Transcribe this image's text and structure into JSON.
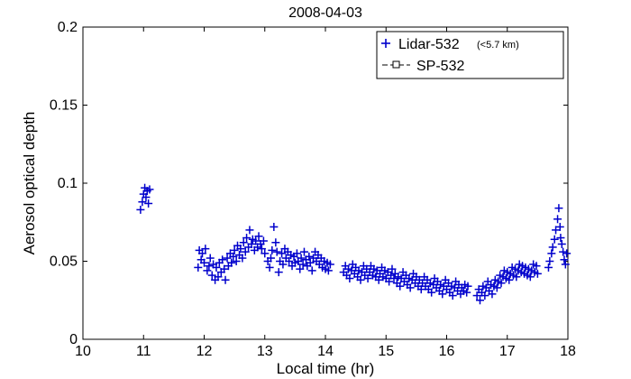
{
  "chart_data": {
    "type": "scatter",
    "title": "2008-04-03",
    "xlabel": "Local time (hr)",
    "ylabel": "Aerosol optical depth",
    "xlim": [
      10,
      18
    ],
    "ylim": [
      0,
      0.2
    ],
    "xticks": [
      "10",
      "11",
      "12",
      "13",
      "14",
      "15",
      "16",
      "17",
      "18"
    ],
    "yticks": [
      "0",
      "0.05",
      "0.1",
      "0.15",
      "0.2"
    ],
    "legend_position": "top-right",
    "series": [
      {
        "name": "Lidar-532",
        "name_note": "(<5.7 km)",
        "marker": "plus",
        "color": "#0000cc",
        "points": [
          [
            10.95,
            0.083
          ],
          [
            10.98,
            0.088
          ],
          [
            11.0,
            0.093
          ],
          [
            11.02,
            0.097
          ],
          [
            11.04,
            0.091
          ],
          [
            11.06,
            0.095
          ],
          [
            11.08,
            0.087
          ],
          [
            11.1,
            0.096
          ],
          [
            11.9,
            0.046
          ],
          [
            11.92,
            0.057
          ],
          [
            11.95,
            0.051
          ],
          [
            11.97,
            0.055
          ],
          [
            12.0,
            0.049
          ],
          [
            12.02,
            0.058
          ],
          [
            12.05,
            0.044
          ],
          [
            12.08,
            0.047
          ],
          [
            12.1,
            0.052
          ],
          [
            12.13,
            0.041
          ],
          [
            12.15,
            0.048
          ],
          [
            12.18,
            0.038
          ],
          [
            12.2,
            0.046
          ],
          [
            12.23,
            0.04
          ],
          [
            12.25,
            0.049
          ],
          [
            12.28,
            0.043
          ],
          [
            12.3,
            0.051
          ],
          [
            12.33,
            0.045
          ],
          [
            12.35,
            0.038
          ],
          [
            12.38,
            0.052
          ],
          [
            12.4,
            0.047
          ],
          [
            12.43,
            0.055
          ],
          [
            12.45,
            0.049
          ],
          [
            12.48,
            0.053
          ],
          [
            12.5,
            0.057
          ],
          [
            12.53,
            0.05
          ],
          [
            12.55,
            0.06
          ],
          [
            12.58,
            0.054
          ],
          [
            12.6,
            0.058
          ],
          [
            12.63,
            0.052
          ],
          [
            12.65,
            0.062
          ],
          [
            12.68,
            0.056
          ],
          [
            12.7,
            0.065
          ],
          [
            12.73,
            0.059
          ],
          [
            12.75,
            0.07
          ],
          [
            12.78,
            0.061
          ],
          [
            12.8,
            0.064
          ],
          [
            12.83,
            0.057
          ],
          [
            12.85,
            0.063
          ],
          [
            12.88,
            0.059
          ],
          [
            12.9,
            0.066
          ],
          [
            12.93,
            0.061
          ],
          [
            12.95,
            0.058
          ],
          [
            12.98,
            0.063
          ],
          [
            13.0,
            0.055
          ],
          [
            13.05,
            0.05
          ],
          [
            13.08,
            0.046
          ],
          [
            13.1,
            0.052
          ],
          [
            13.12,
            0.057
          ],
          [
            13.15,
            0.072
          ],
          [
            13.18,
            0.062
          ],
          [
            13.2,
            0.056
          ],
          [
            13.23,
            0.043
          ],
          [
            13.25,
            0.05
          ],
          [
            13.28,
            0.055
          ],
          [
            13.3,
            0.048
          ],
          [
            13.33,
            0.058
          ],
          [
            13.35,
            0.052
          ],
          [
            13.38,
            0.056
          ],
          [
            13.4,
            0.05
          ],
          [
            13.43,
            0.054
          ],
          [
            13.45,
            0.047
          ],
          [
            13.48,
            0.053
          ],
          [
            13.5,
            0.049
          ],
          [
            13.53,
            0.055
          ],
          [
            13.55,
            0.05
          ],
          [
            13.58,
            0.045
          ],
          [
            13.6,
            0.052
          ],
          [
            13.63,
            0.048
          ],
          [
            13.65,
            0.056
          ],
          [
            13.68,
            0.051
          ],
          [
            13.7,
            0.047
          ],
          [
            13.73,
            0.053
          ],
          [
            13.75,
            0.049
          ],
          [
            13.78,
            0.044
          ],
          [
            13.8,
            0.052
          ],
          [
            13.83,
            0.056
          ],
          [
            13.85,
            0.05
          ],
          [
            13.88,
            0.054
          ],
          [
            13.9,
            0.048
          ],
          [
            13.93,
            0.052
          ],
          [
            13.95,
            0.046
          ],
          [
            13.98,
            0.05
          ],
          [
            14.0,
            0.045
          ],
          [
            14.03,
            0.049
          ],
          [
            14.05,
            0.044
          ],
          [
            14.08,
            0.048
          ],
          [
            14.3,
            0.043
          ],
          [
            14.33,
            0.047
          ],
          [
            14.35,
            0.041
          ],
          [
            14.38,
            0.045
          ],
          [
            14.4,
            0.039
          ],
          [
            14.43,
            0.044
          ],
          [
            14.45,
            0.048
          ],
          [
            14.48,
            0.042
          ],
          [
            14.5,
            0.046
          ],
          [
            14.53,
            0.04
          ],
          [
            14.55,
            0.044
          ],
          [
            14.58,
            0.038
          ],
          [
            14.6,
            0.043
          ],
          [
            14.63,
            0.047
          ],
          [
            14.65,
            0.041
          ],
          [
            14.68,
            0.045
          ],
          [
            14.7,
            0.039
          ],
          [
            14.73,
            0.043
          ],
          [
            14.75,
            0.047
          ],
          [
            14.78,
            0.041
          ],
          [
            14.8,
            0.045
          ],
          [
            14.83,
            0.04
          ],
          [
            14.85,
            0.044
          ],
          [
            14.88,
            0.038
          ],
          [
            14.9,
            0.042
          ],
          [
            14.93,
            0.046
          ],
          [
            14.95,
            0.04
          ],
          [
            14.98,
            0.044
          ],
          [
            15.0,
            0.039
          ],
          [
            15.03,
            0.043
          ],
          [
            15.05,
            0.037
          ],
          [
            15.08,
            0.041
          ],
          [
            15.1,
            0.045
          ],
          [
            15.13,
            0.039
          ],
          [
            15.15,
            0.042
          ],
          [
            15.18,
            0.036
          ],
          [
            15.2,
            0.04
          ],
          [
            15.23,
            0.034
          ],
          [
            15.25,
            0.039
          ],
          [
            15.28,
            0.043
          ],
          [
            15.3,
            0.037
          ],
          [
            15.33,
            0.041
          ],
          [
            15.35,
            0.035
          ],
          [
            15.38,
            0.039
          ],
          [
            15.4,
            0.033
          ],
          [
            15.43,
            0.038
          ],
          [
            15.45,
            0.042
          ],
          [
            15.48,
            0.036
          ],
          [
            15.5,
            0.04
          ],
          [
            15.53,
            0.034
          ],
          [
            15.55,
            0.038
          ],
          [
            15.58,
            0.032
          ],
          [
            15.6,
            0.036
          ],
          [
            15.63,
            0.04
          ],
          [
            15.65,
            0.034
          ],
          [
            15.68,
            0.038
          ],
          [
            15.7,
            0.032
          ],
          [
            15.73,
            0.036
          ],
          [
            15.75,
            0.03
          ],
          [
            15.78,
            0.035
          ],
          [
            15.8,
            0.039
          ],
          [
            15.83,
            0.033
          ],
          [
            15.85,
            0.037
          ],
          [
            15.88,
            0.031
          ],
          [
            15.9,
            0.035
          ],
          [
            15.93,
            0.029
          ],
          [
            15.95,
            0.034
          ],
          [
            15.98,
            0.038
          ],
          [
            16.0,
            0.032
          ],
          [
            16.03,
            0.036
          ],
          [
            16.05,
            0.03
          ],
          [
            16.08,
            0.034
          ],
          [
            16.1,
            0.028
          ],
          [
            16.13,
            0.033
          ],
          [
            16.15,
            0.037
          ],
          [
            16.18,
            0.031
          ],
          [
            16.2,
            0.035
          ],
          [
            16.23,
            0.029
          ],
          [
            16.25,
            0.033
          ],
          [
            16.28,
            0.031
          ],
          [
            16.3,
            0.035
          ],
          [
            16.33,
            0.03
          ],
          [
            16.35,
            0.034
          ],
          [
            16.5,
            0.028
          ],
          [
            16.53,
            0.032
          ],
          [
            16.55,
            0.025
          ],
          [
            16.58,
            0.03
          ],
          [
            16.6,
            0.034
          ],
          [
            16.63,
            0.028
          ],
          [
            16.65,
            0.033
          ],
          [
            16.68,
            0.037
          ],
          [
            16.7,
            0.031
          ],
          [
            16.73,
            0.035
          ],
          [
            16.75,
            0.029
          ],
          [
            16.78,
            0.034
          ],
          [
            16.8,
            0.038
          ],
          [
            16.83,
            0.033
          ],
          [
            16.85,
            0.037
          ],
          [
            16.88,
            0.041
          ],
          [
            16.9,
            0.036
          ],
          [
            16.93,
            0.04
          ],
          [
            16.95,
            0.044
          ],
          [
            16.98,
            0.039
          ],
          [
            17.0,
            0.043
          ],
          [
            17.03,
            0.038
          ],
          [
            17.05,
            0.042
          ],
          [
            17.08,
            0.046
          ],
          [
            17.1,
            0.041
          ],
          [
            17.13,
            0.045
          ],
          [
            17.15,
            0.04
          ],
          [
            17.18,
            0.044
          ],
          [
            17.2,
            0.048
          ],
          [
            17.23,
            0.043
          ],
          [
            17.25,
            0.047
          ],
          [
            17.28,
            0.042
          ],
          [
            17.3,
            0.046
          ],
          [
            17.33,
            0.041
          ],
          [
            17.35,
            0.045
          ],
          [
            17.38,
            0.04
          ],
          [
            17.4,
            0.044
          ],
          [
            17.43,
            0.048
          ],
          [
            17.45,
            0.043
          ],
          [
            17.48,
            0.047
          ],
          [
            17.5,
            0.042
          ],
          [
            17.68,
            0.046
          ],
          [
            17.7,
            0.05
          ],
          [
            17.73,
            0.055
          ],
          [
            17.75,
            0.059
          ],
          [
            17.78,
            0.064
          ],
          [
            17.8,
            0.07
          ],
          [
            17.83,
            0.077
          ],
          [
            17.85,
            0.084
          ],
          [
            17.87,
            0.072
          ],
          [
            17.88,
            0.065
          ],
          [
            17.9,
            0.061
          ],
          [
            17.92,
            0.056
          ],
          [
            17.94,
            0.051
          ],
          [
            17.96,
            0.048
          ],
          [
            17.98,
            0.055
          ]
        ]
      },
      {
        "name": "SP-532",
        "marker": "square-line",
        "color": "#000000",
        "points": []
      }
    ]
  }
}
